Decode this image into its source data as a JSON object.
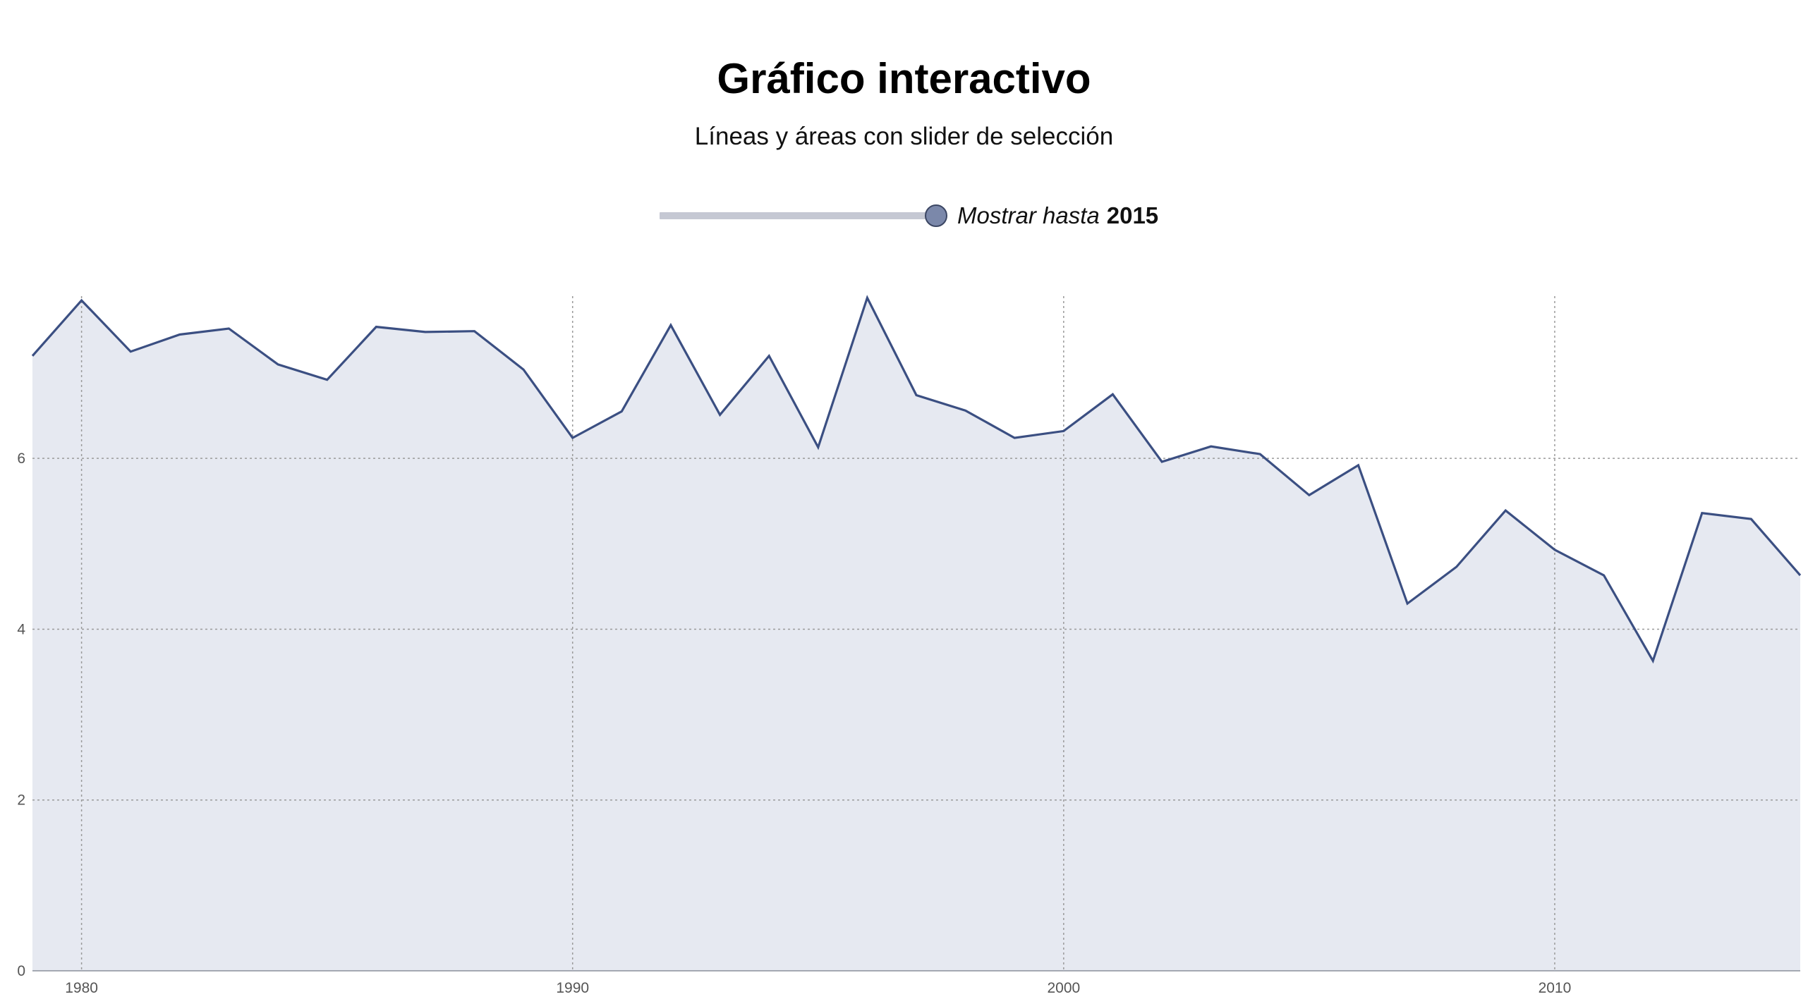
{
  "header": {
    "title": "Gráfico interactivo",
    "subtitle": "Líneas y áreas con slider de selección"
  },
  "slider": {
    "label_prefix": "Mostrar hasta",
    "value": 2015,
    "value_label": "2015",
    "fraction": 1.0
  },
  "colors": {
    "line": "#3b4f82",
    "area": "#e6e9f1",
    "grid": "#9a9a9a",
    "slider_track": "#c5c8d3",
    "slider_thumb": "#7b88aa"
  },
  "chart_data": {
    "type": "area",
    "title": "",
    "xlabel": "",
    "ylabel": "",
    "x": [
      1979,
      1980,
      1981,
      1982,
      1983,
      1984,
      1985,
      1986,
      1987,
      1988,
      1989,
      1990,
      1991,
      1992,
      1993,
      1994,
      1995,
      1996,
      1997,
      1998,
      1999,
      2000,
      2001,
      2002,
      2003,
      2004,
      2005,
      2006,
      2007,
      2008,
      2009,
      2010,
      2011,
      2012,
      2013,
      2014,
      2015
    ],
    "values": [
      7.2,
      7.85,
      7.25,
      7.45,
      7.52,
      7.1,
      6.92,
      7.54,
      7.48,
      7.49,
      7.04,
      6.24,
      6.55,
      7.56,
      6.51,
      7.2,
      6.13,
      7.88,
      6.74,
      6.56,
      6.24,
      6.32,
      6.75,
      5.96,
      6.14,
      6.05,
      5.57,
      5.92,
      4.3,
      4.73,
      5.39,
      4.93,
      4.63,
      3.63,
      5.36,
      5.29,
      4.63
    ],
    "xlim": [
      1979,
      2015
    ],
    "ylim": [
      0,
      7.9
    ],
    "x_ticks": [
      "1980",
      "1990",
      "2000",
      "2010"
    ],
    "y_ticks": [
      "0",
      "2",
      "4",
      "6"
    ],
    "grid": true
  }
}
